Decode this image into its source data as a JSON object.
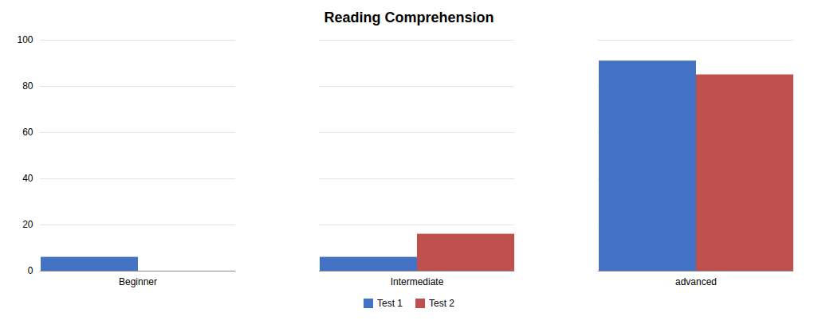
{
  "chart_data": {
    "type": "bar",
    "title": "Reading Comprehension",
    "categories": [
      "Beginner",
      "Intermediate",
      "advanced"
    ],
    "series": [
      {
        "name": "Test 1",
        "color": "#4472C4",
        "values": [
          6,
          6,
          91
        ]
      },
      {
        "name": "Test 2",
        "color": "#C0504D",
        "values": [
          0,
          16,
          85
        ]
      }
    ],
    "ylim": [
      0,
      100
    ],
    "yticks": [
      0,
      20,
      40,
      60,
      80,
      100
    ],
    "grid": true,
    "legend": "bottom"
  }
}
